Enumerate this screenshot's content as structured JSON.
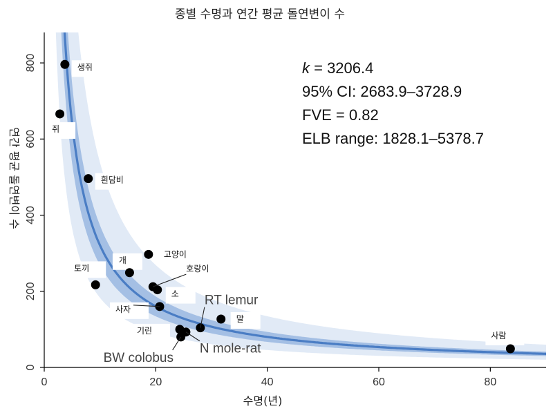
{
  "chart_data": {
    "type": "scatter",
    "title": "종별 수명과 연간 평균 돌연변이 수",
    "xlabel": "수명(년)",
    "ylabel": "연간 평균 돌연변이 수",
    "xlim": [
      0,
      90
    ],
    "ylim": [
      0,
      880
    ],
    "x_ticks": [
      0,
      20,
      40,
      60,
      80
    ],
    "y_ticks": [
      0,
      200,
      400,
      600,
      800
    ],
    "grid": false,
    "points": [
      {
        "label": "생쥐",
        "x": 3.7,
        "y": 796
      },
      {
        "label": "쥐",
        "x": 2.8,
        "y": 666
      },
      {
        "label": "흰담비",
        "x": 7.9,
        "y": 496
      },
      {
        "label": "고양이",
        "x": 18.7,
        "y": 297
      },
      {
        "label": "개",
        "x": 15.3,
        "y": 249
      },
      {
        "label": "토끼",
        "x": 9.2,
        "y": 217
      },
      {
        "label": "호랑이",
        "x": 19.5,
        "y": 212
      },
      {
        "label": "소",
        "x": 20.3,
        "y": 204
      },
      {
        "label": "사자",
        "x": 20.7,
        "y": 160
      },
      {
        "label": "RT lemur",
        "x": 28.0,
        "y": 104
      },
      {
        "label": "말",
        "x": 31.7,
        "y": 127
      },
      {
        "label": "기린",
        "x": 24.3,
        "y": 100
      },
      {
        "label": "N mole-rat",
        "x": 25.4,
        "y": 93
      },
      {
        "label": "BW colobus",
        "x": 24.5,
        "y": 80
      },
      {
        "label": "사람",
        "x": 83.6,
        "y": 49
      }
    ],
    "fit": {
      "type": "k / x",
      "k": 3206.4,
      "k_lo": 2683.9,
      "k_hi": 3728.9,
      "elb_lo": 1828.1,
      "elb_hi": 5378.7
    },
    "stats": {
      "k_symbol": "k",
      "k_value": " = 3206.4",
      "ci": "95% CI: 2683.9–3728.9",
      "fve": "FVE = 0.82",
      "elb": "ELB range: 1828.1–5378.7"
    },
    "colors": {
      "curve": "#4a7dc4",
      "ci_band": "#a4bfe4",
      "elb_band": "#e1eaf6",
      "point": "#000000"
    }
  }
}
